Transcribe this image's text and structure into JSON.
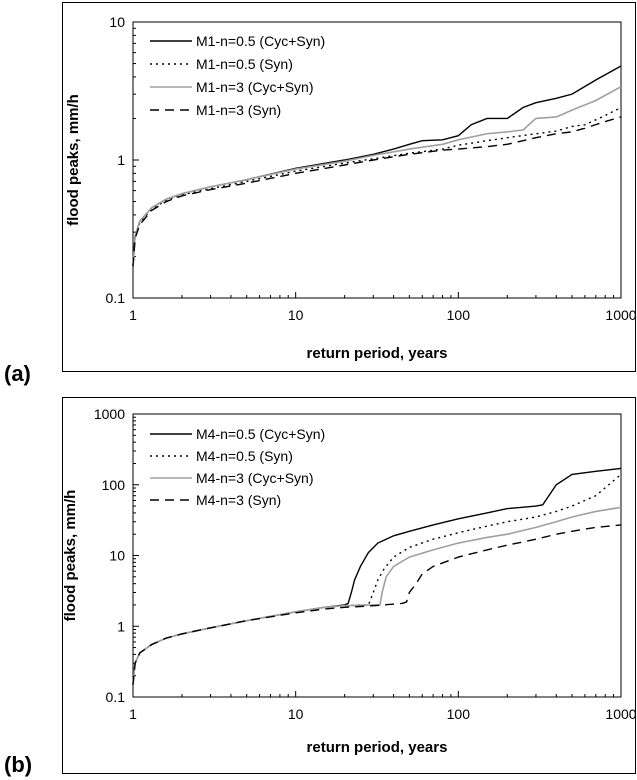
{
  "chart_data": [
    {
      "panel_label": "(a)",
      "type": "line",
      "xscale": "log",
      "yscale": "log",
      "xlim": [
        1,
        1000
      ],
      "ylim": [
        0.1,
        10
      ],
      "xticks": [
        "1",
        "10",
        "100",
        "1000"
      ],
      "yticks": [
        "0.1",
        "1",
        "10"
      ],
      "xlabel": "return period, years",
      "ylabel": "flood peaks, mm/h",
      "grid": false,
      "legend_position": "top-left",
      "series": [
        {
          "name": "M1-n=0.5 (Cyc+Syn)",
          "style": "solid",
          "color": "#000000",
          "points": [
            [
              1,
              0.17
            ],
            [
              1.03,
              0.28
            ],
            [
              1.1,
              0.36
            ],
            [
              1.3,
              0.45
            ],
            [
              1.6,
              0.52
            ],
            [
              2,
              0.57
            ],
            [
              3,
              0.64
            ],
            [
              5,
              0.72
            ],
            [
              10,
              0.87
            ],
            [
              20,
              1.0
            ],
            [
              30,
              1.1
            ],
            [
              40,
              1.2
            ],
            [
              50,
              1.3
            ],
            [
              60,
              1.38
            ],
            [
              80,
              1.4
            ],
            [
              100,
              1.5
            ],
            [
              120,
              1.8
            ],
            [
              150,
              2.0
            ],
            [
              200,
              2.0
            ],
            [
              250,
              2.4
            ],
            [
              300,
              2.6
            ],
            [
              400,
              2.8
            ],
            [
              500,
              3.0
            ],
            [
              700,
              3.8
            ],
            [
              1000,
              4.8
            ]
          ]
        },
        {
          "name": "M1-n=0.5 (Syn)",
          "style": "dotted",
          "color": "#000000",
          "points": [
            [
              1,
              0.17
            ],
            [
              1.03,
              0.28
            ],
            [
              1.1,
              0.35
            ],
            [
              1.3,
              0.44
            ],
            [
              1.6,
              0.51
            ],
            [
              2,
              0.56
            ],
            [
              3,
              0.62
            ],
            [
              5,
              0.7
            ],
            [
              10,
              0.83
            ],
            [
              20,
              0.95
            ],
            [
              30,
              1.02
            ],
            [
              50,
              1.12
            ],
            [
              80,
              1.2
            ],
            [
              100,
              1.28
            ],
            [
              150,
              1.38
            ],
            [
              200,
              1.45
            ],
            [
              300,
              1.55
            ],
            [
              400,
              1.62
            ],
            [
              500,
              1.75
            ],
            [
              600,
              1.8
            ],
            [
              800,
              2.1
            ],
            [
              1000,
              2.4
            ]
          ]
        },
        {
          "name": "M1-n=3 (Cyc+Syn)",
          "style": "solid",
          "color": "#a0a0a0",
          "points": [
            [
              1,
              0.17
            ],
            [
              1.03,
              0.28
            ],
            [
              1.1,
              0.36
            ],
            [
              1.3,
              0.45
            ],
            [
              1.6,
              0.52
            ],
            [
              2,
              0.57
            ],
            [
              3,
              0.64
            ],
            [
              5,
              0.72
            ],
            [
              10,
              0.86
            ],
            [
              20,
              0.98
            ],
            [
              30,
              1.08
            ],
            [
              50,
              1.2
            ],
            [
              80,
              1.3
            ],
            [
              100,
              1.4
            ],
            [
              150,
              1.55
            ],
            [
              200,
              1.6
            ],
            [
              250,
              1.65
            ],
            [
              300,
              2.0
            ],
            [
              400,
              2.05
            ],
            [
              500,
              2.3
            ],
            [
              700,
              2.7
            ],
            [
              1000,
              3.4
            ]
          ]
        },
        {
          "name": "M1-n=3 (Syn)",
          "style": "dashed",
          "color": "#000000",
          "points": [
            [
              1,
              0.17
            ],
            [
              1.03,
              0.27
            ],
            [
              1.1,
              0.34
            ],
            [
              1.3,
              0.43
            ],
            [
              1.6,
              0.5
            ],
            [
              2,
              0.55
            ],
            [
              3,
              0.61
            ],
            [
              5,
              0.68
            ],
            [
              10,
              0.8
            ],
            [
              20,
              0.92
            ],
            [
              30,
              1.0
            ],
            [
              50,
              1.1
            ],
            [
              80,
              1.18
            ],
            [
              100,
              1.2
            ],
            [
              150,
              1.25
            ],
            [
              200,
              1.3
            ],
            [
              300,
              1.45
            ],
            [
              400,
              1.55
            ],
            [
              500,
              1.6
            ],
            [
              600,
              1.7
            ],
            [
              800,
              1.9
            ],
            [
              1000,
              2.05
            ]
          ]
        }
      ]
    },
    {
      "panel_label": "(b)",
      "type": "line",
      "xscale": "log",
      "yscale": "log",
      "xlim": [
        1,
        1000
      ],
      "ylim": [
        0.1,
        1000
      ],
      "xticks": [
        "1",
        "10",
        "100",
        "1000"
      ],
      "yticks": [
        "0.1",
        "1",
        "10",
        "100",
        "1000"
      ],
      "xlabel": "return period, years",
      "ylabel": "flood peaks, mm/h",
      "grid": false,
      "legend_position": "top-left",
      "series": [
        {
          "name": "M4-n=0.5 (Cyc+Syn)",
          "style": "solid",
          "color": "#000000",
          "points": [
            [
              1,
              0.15
            ],
            [
              1.03,
              0.3
            ],
            [
              1.1,
              0.42
            ],
            [
              1.3,
              0.55
            ],
            [
              1.6,
              0.68
            ],
            [
              2,
              0.78
            ],
            [
              3,
              0.95
            ],
            [
              5,
              1.2
            ],
            [
              10,
              1.6
            ],
            [
              15,
              1.85
            ],
            [
              20,
              2.0
            ],
            [
              21,
              2.1
            ],
            [
              22,
              3.0
            ],
            [
              23,
              4.5
            ],
            [
              25,
              7.0
            ],
            [
              28,
              11
            ],
            [
              32,
              15
            ],
            [
              40,
              19
            ],
            [
              50,
              22
            ],
            [
              70,
              27
            ],
            [
              100,
              33
            ],
            [
              150,
              40
            ],
            [
              200,
              46
            ],
            [
              300,
              50
            ],
            [
              330,
              52
            ],
            [
              400,
              100
            ],
            [
              500,
              140
            ],
            [
              700,
              155
            ],
            [
              1000,
              170
            ]
          ]
        },
        {
          "name": "M4-n=0.5 (Syn)",
          "style": "dotted",
          "color": "#000000",
          "points": [
            [
              1,
              0.15
            ],
            [
              1.03,
              0.3
            ],
            [
              1.1,
              0.42
            ],
            [
              1.3,
              0.55
            ],
            [
              1.6,
              0.68
            ],
            [
              2,
              0.78
            ],
            [
              3,
              0.95
            ],
            [
              5,
              1.2
            ],
            [
              10,
              1.6
            ],
            [
              15,
              1.85
            ],
            [
              20,
              1.95
            ],
            [
              25,
              2.0
            ],
            [
              28,
              2.0
            ],
            [
              30,
              3.0
            ],
            [
              32,
              4.5
            ],
            [
              35,
              6.5
            ],
            [
              40,
              9.5
            ],
            [
              50,
              13
            ],
            [
              70,
              17
            ],
            [
              100,
              21
            ],
            [
              150,
              26
            ],
            [
              200,
              30
            ],
            [
              300,
              35
            ],
            [
              400,
              42
            ],
            [
              500,
              50
            ],
            [
              700,
              70
            ],
            [
              1000,
              140
            ]
          ]
        },
        {
          "name": "M4-n=3 (Cyc+Syn)",
          "style": "solid",
          "color": "#a0a0a0",
          "points": [
            [
              1,
              0.15
            ],
            [
              1.03,
              0.3
            ],
            [
              1.1,
              0.42
            ],
            [
              1.3,
              0.55
            ],
            [
              1.6,
              0.68
            ],
            [
              2,
              0.78
            ],
            [
              3,
              0.95
            ],
            [
              5,
              1.2
            ],
            [
              10,
              1.6
            ],
            [
              15,
              1.85
            ],
            [
              20,
              1.95
            ],
            [
              30,
              2.0
            ],
            [
              33,
              2.0
            ],
            [
              34,
              3.0
            ],
            [
              36,
              5.0
            ],
            [
              40,
              7.0
            ],
            [
              50,
              9.5
            ],
            [
              70,
              12
            ],
            [
              100,
              15
            ],
            [
              150,
              18
            ],
            [
              200,
              20
            ],
            [
              300,
              25
            ],
            [
              400,
              30
            ],
            [
              500,
              35
            ],
            [
              700,
              42
            ],
            [
              1000,
              48
            ]
          ]
        },
        {
          "name": "M4-n=3 (Syn)",
          "style": "dashed",
          "color": "#000000",
          "points": [
            [
              1,
              0.15
            ],
            [
              1.03,
              0.3
            ],
            [
              1.1,
              0.42
            ],
            [
              1.3,
              0.55
            ],
            [
              1.6,
              0.68
            ],
            [
              2,
              0.78
            ],
            [
              3,
              0.95
            ],
            [
              5,
              1.2
            ],
            [
              10,
              1.55
            ],
            [
              15,
              1.75
            ],
            [
              20,
              1.85
            ],
            [
              30,
              1.95
            ],
            [
              45,
              2.1
            ],
            [
              48,
              2.2
            ],
            [
              50,
              3.0
            ],
            [
              55,
              4.0
            ],
            [
              60,
              5.5
            ],
            [
              70,
              7.0
            ],
            [
              100,
              9.5
            ],
            [
              150,
              12
            ],
            [
              200,
              14
            ],
            [
              300,
              17
            ],
            [
              400,
              20
            ],
            [
              500,
              22
            ],
            [
              700,
              25
            ],
            [
              1000,
              27
            ]
          ]
        }
      ]
    }
  ]
}
